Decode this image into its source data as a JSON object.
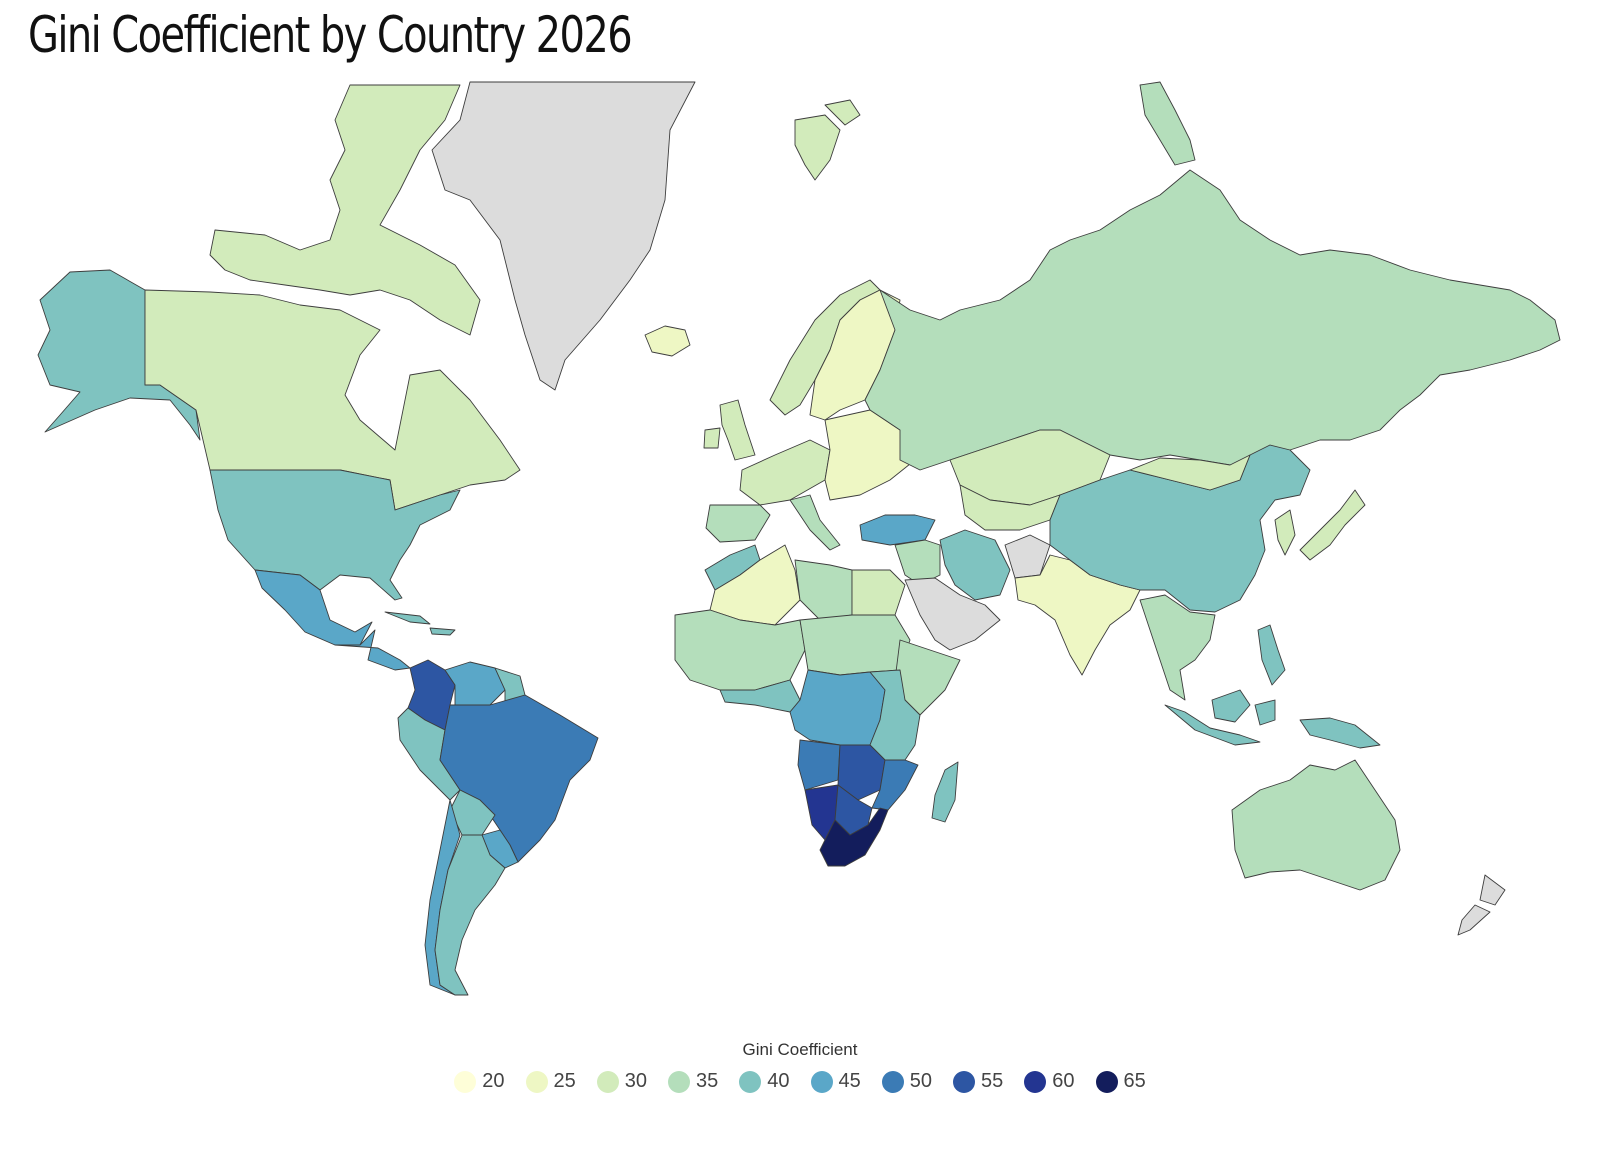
{
  "title": "Gini Coefficient by Country 2026",
  "map": {
    "no_data_color": "#dcdcdc",
    "scale_colors": [
      "#fefed8",
      "#eef7c4",
      "#d2ebbb",
      "#b4debb",
      "#7fc3c0",
      "#5aa7c8",
      "#3b7bb5",
      "#2d56a3",
      "#233591",
      "#131d5c"
    ],
    "regions": [
      {
        "name": "Alaska",
        "value": 40
      },
      {
        "name": "Canada",
        "value": 30
      },
      {
        "name": "Canadian Arctic islands",
        "value": 30
      },
      {
        "name": "Greenland",
        "value": null
      },
      {
        "name": "Iceland",
        "value": 25
      },
      {
        "name": "United States",
        "value": 41
      },
      {
        "name": "Mexico",
        "value": 45
      },
      {
        "name": "Central America",
        "value": 46
      },
      {
        "name": "Caribbean",
        "value": 40
      },
      {
        "name": "Colombia",
        "value": 55
      },
      {
        "name": "Venezuela",
        "value": 44
      },
      {
        "name": "Guianas",
        "value": 40
      },
      {
        "name": "Ecuador & Peru",
        "value": 40
      },
      {
        "name": "Brazil",
        "value": 52
      },
      {
        "name": "Bolivia",
        "value": 42
      },
      {
        "name": "Paraguay & Uruguay",
        "value": 43
      },
      {
        "name": "Chile",
        "value": 43
      },
      {
        "name": "Argentina",
        "value": 42
      },
      {
        "name": "Norway",
        "value": 28
      },
      {
        "name": "Sweden & Finland",
        "value": 27
      },
      {
        "name": "United Kingdom & Ireland",
        "value": 32
      },
      {
        "name": "Western Europe",
        "value": 32
      },
      {
        "name": "Spain & Portugal",
        "value": 34
      },
      {
        "name": "Italy",
        "value": 35
      },
      {
        "name": "Eastern Europe",
        "value": 26
      },
      {
        "name": "Turkey",
        "value": 44
      },
      {
        "name": "Russia",
        "value": 36
      },
      {
        "name": "Kazakhstan",
        "value": 28
      },
      {
        "name": "Central Asia",
        "value": 30
      },
      {
        "name": "Iran",
        "value": 38
      },
      {
        "name": "Middle East",
        "value": 36
      },
      {
        "name": "Arabian Peninsula",
        "value": null
      },
      {
        "name": "Afghanistan",
        "value": null
      },
      {
        "name": "Pakistan & India",
        "value": 25
      },
      {
        "name": "China",
        "value": 38
      },
      {
        "name": "Mongolia",
        "value": 31
      },
      {
        "name": "Korea",
        "value": 31
      },
      {
        "name": "Japan",
        "value": 32
      },
      {
        "name": "Southeast Asia",
        "value": 37
      },
      {
        "name": "Philippines",
        "value": 40
      },
      {
        "name": "Indonesia",
        "value": 38
      },
      {
        "name": "Papua New Guinea",
        "value": 41
      },
      {
        "name": "Australia",
        "value": 34
      },
      {
        "name": "New Zealand",
        "value": null
      },
      {
        "name": "Morocco",
        "value": 40
      },
      {
        "name": "Algeria & Sahara",
        "value": 27
      },
      {
        "name": "Libya",
        "value": 35
      },
      {
        "name": "Egypt",
        "value": 31
      },
      {
        "name": "West Africa",
        "value": 37
      },
      {
        "name": "Gulf of Guinea",
        "value": 40
      },
      {
        "name": "Chad & Sudan",
        "value": 34
      },
      {
        "name": "Horn of Africa",
        "value": 33
      },
      {
        "name": "Central Africa",
        "value": 43
      },
      {
        "name": "East Africa",
        "value": 42
      },
      {
        "name": "Angola",
        "value": 51
      },
      {
        "name": "Zambia & Zimbabwe",
        "value": 54
      },
      {
        "name": "Mozambique",
        "value": 50
      },
      {
        "name": "Namibia",
        "value": 59
      },
      {
        "name": "Botswana",
        "value": 53
      },
      {
        "name": "South Africa",
        "value": 63
      },
      {
        "name": "Madagascar",
        "value": 42
      }
    ]
  },
  "legend": {
    "title": "Gini Coefficient",
    "items": [
      {
        "label": "20",
        "color": "#fefed8"
      },
      {
        "label": "25",
        "color": "#eef7c4"
      },
      {
        "label": "30",
        "color": "#d2ebbb"
      },
      {
        "label": "35",
        "color": "#b4debb"
      },
      {
        "label": "40",
        "color": "#7fc3c0"
      },
      {
        "label": "45",
        "color": "#5aa7c8"
      },
      {
        "label": "50",
        "color": "#3b7bb5"
      },
      {
        "label": "55",
        "color": "#2d56a3"
      },
      {
        "label": "60",
        "color": "#233591"
      },
      {
        "label": "65",
        "color": "#131d5c"
      }
    ]
  }
}
